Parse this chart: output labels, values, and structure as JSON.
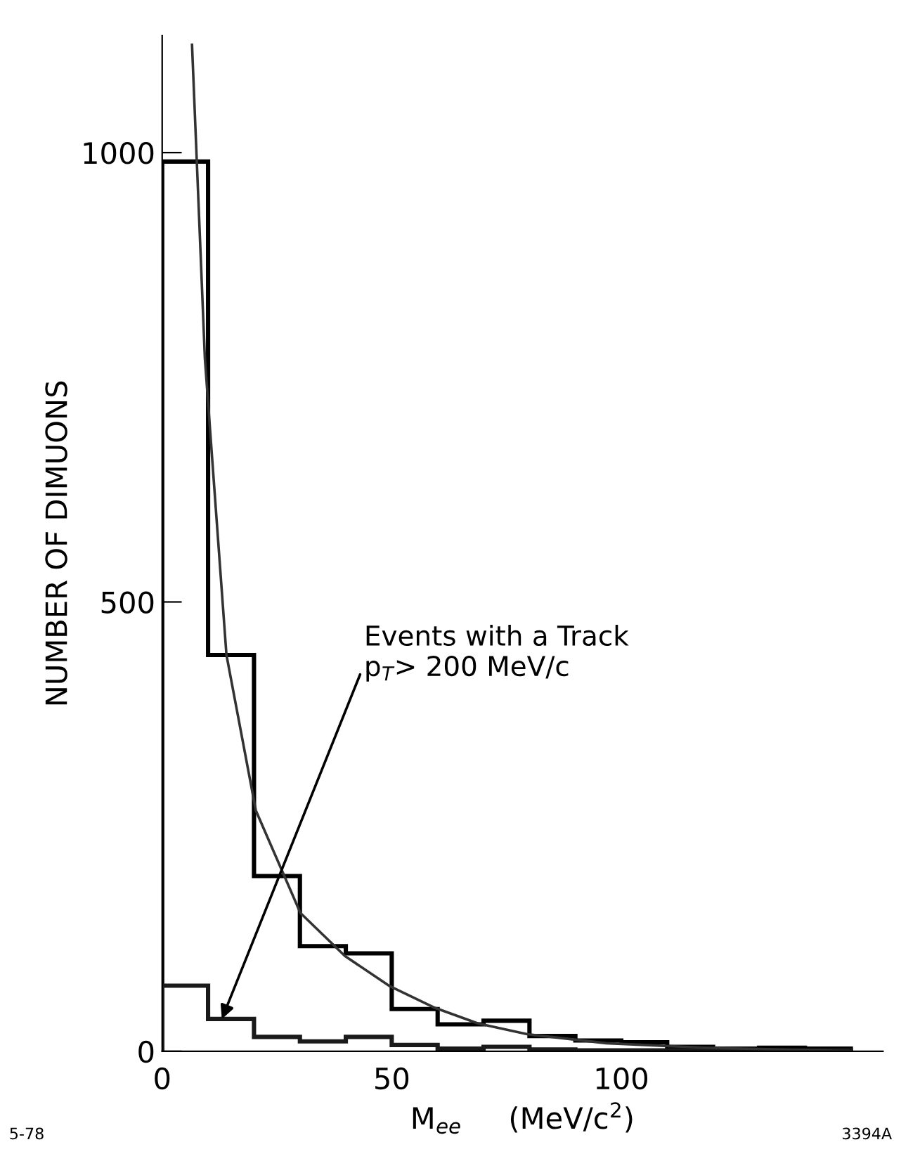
{
  "chart_data": {
    "type": "histogram",
    "xlabel": "M$_{ee}$     (MeV/c$^{2}$)",
    "ylabel": "NUMBER OF DIMUONS",
    "bins": [
      0,
      10,
      20,
      30,
      40,
      50,
      60,
      70,
      80,
      90,
      100,
      110,
      120,
      130,
      140,
      150
    ],
    "series": [
      {
        "color": "#000000",
        "values": [
          990,
          441,
          195,
          117,
          109,
          47,
          30,
          34,
          17,
          12,
          10,
          5,
          3,
          4,
          3
        ]
      },
      {
        "color": "#1a1a1a",
        "values": [
          73,
          36,
          16,
          11,
          16,
          7,
          3,
          5,
          2,
          1,
          1,
          1,
          1,
          1,
          1
        ]
      },
      {
        "type": "line",
        "color": "#333333",
        "x": [
          6.5,
          9.3,
          14,
          20.4,
          30.1,
          39.8,
          49.4,
          59.1,
          68.8,
          79.5,
          96.7,
          118,
          150
        ],
        "values": [
          1120,
          771,
          441,
          268,
          154,
          106,
          73,
          49,
          31,
          19,
          9,
          4,
          0
        ]
      }
    ],
    "xlim": [
      0,
      157
    ],
    "ylim": [
      0,
      1130
    ],
    "xticks": [
      0,
      50,
      100
    ],
    "yticks": [
      0,
      500,
      1000
    ],
    "annotations": [
      {
        "text": "Events with a Track\np$_{T}$> 200 MeV/c",
        "x": 13,
        "y": 36
      },
      "5-78",
      "3394A"
    ],
    "grid": false,
    "legend": false
  }
}
